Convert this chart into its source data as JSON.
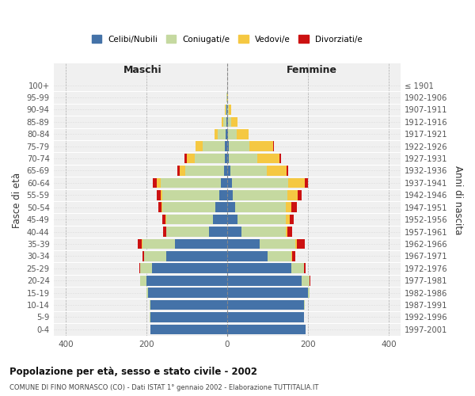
{
  "age_groups": [
    "0-4",
    "5-9",
    "10-14",
    "15-19",
    "20-24",
    "25-29",
    "30-34",
    "35-39",
    "40-44",
    "45-49",
    "50-54",
    "55-59",
    "60-64",
    "65-69",
    "70-74",
    "75-79",
    "80-84",
    "85-89",
    "90-94",
    "95-99",
    "100+"
  ],
  "birth_years": [
    "1997-2001",
    "1992-1996",
    "1987-1991",
    "1982-1986",
    "1977-1981",
    "1972-1976",
    "1967-1971",
    "1962-1966",
    "1957-1961",
    "1952-1956",
    "1947-1951",
    "1942-1946",
    "1937-1941",
    "1932-1936",
    "1927-1931",
    "1922-1926",
    "1917-1921",
    "1912-1916",
    "1907-1911",
    "1902-1906",
    "≤ 1901"
  ],
  "males": {
    "celibi": [
      190,
      190,
      190,
      195,
      200,
      185,
      150,
      130,
      45,
      35,
      30,
      20,
      15,
      8,
      5,
      5,
      3,
      2,
      1,
      0,
      0
    ],
    "coniugati": [
      0,
      1,
      2,
      5,
      15,
      30,
      55,
      80,
      105,
      115,
      130,
      140,
      150,
      95,
      75,
      55,
      20,
      8,
      3,
      1,
      0
    ],
    "vedovi": [
      0,
      0,
      0,
      0,
      0,
      0,
      0,
      1,
      1,
      2,
      3,
      5,
      10,
      15,
      20,
      18,
      8,
      3,
      1,
      0,
      0
    ],
    "divorziati": [
      0,
      0,
      0,
      0,
      0,
      2,
      5,
      10,
      8,
      8,
      8,
      10,
      8,
      5,
      5,
      1,
      0,
      0,
      0,
      0,
      0
    ]
  },
  "females": {
    "nubili": [
      195,
      190,
      190,
      200,
      185,
      160,
      100,
      80,
      35,
      25,
      20,
      15,
      12,
      8,
      5,
      5,
      3,
      2,
      1,
      0,
      0
    ],
    "coniugate": [
      0,
      1,
      2,
      5,
      20,
      30,
      60,
      90,
      110,
      120,
      125,
      135,
      140,
      90,
      70,
      50,
      20,
      8,
      4,
      1,
      0
    ],
    "vedove": [
      0,
      0,
      0,
      0,
      0,
      1,
      2,
      2,
      5,
      10,
      15,
      25,
      40,
      50,
      55,
      60,
      30,
      15,
      5,
      2,
      0
    ],
    "divorziate": [
      0,
      0,
      0,
      0,
      1,
      3,
      8,
      20,
      12,
      10,
      12,
      10,
      8,
      3,
      3,
      1,
      1,
      0,
      0,
      0,
      0
    ]
  },
  "colors": {
    "celibi": "#4472a8",
    "coniugati": "#c5d9a0",
    "vedovi": "#f5c842",
    "divorziati": "#cc1111"
  },
  "xlim": 430,
  "title_main": "Popolazione per età, sesso e stato civile - 2002",
  "title_sub": "COMUNE DI FINO MORNASCO (CO) - Dati ISTAT 1° gennaio 2002 - Elaborazione TUTTITALIA.IT",
  "legend_labels": [
    "Celibi/Nubili",
    "Coniugati/e",
    "Vedovi/e",
    "Divorziati/e"
  ],
  "xlabel_maschi": "Maschi",
  "xlabel_femmine": "Femmine",
  "ylabel_left": "Fasce di età",
  "ylabel_right": "Anni di nascita"
}
